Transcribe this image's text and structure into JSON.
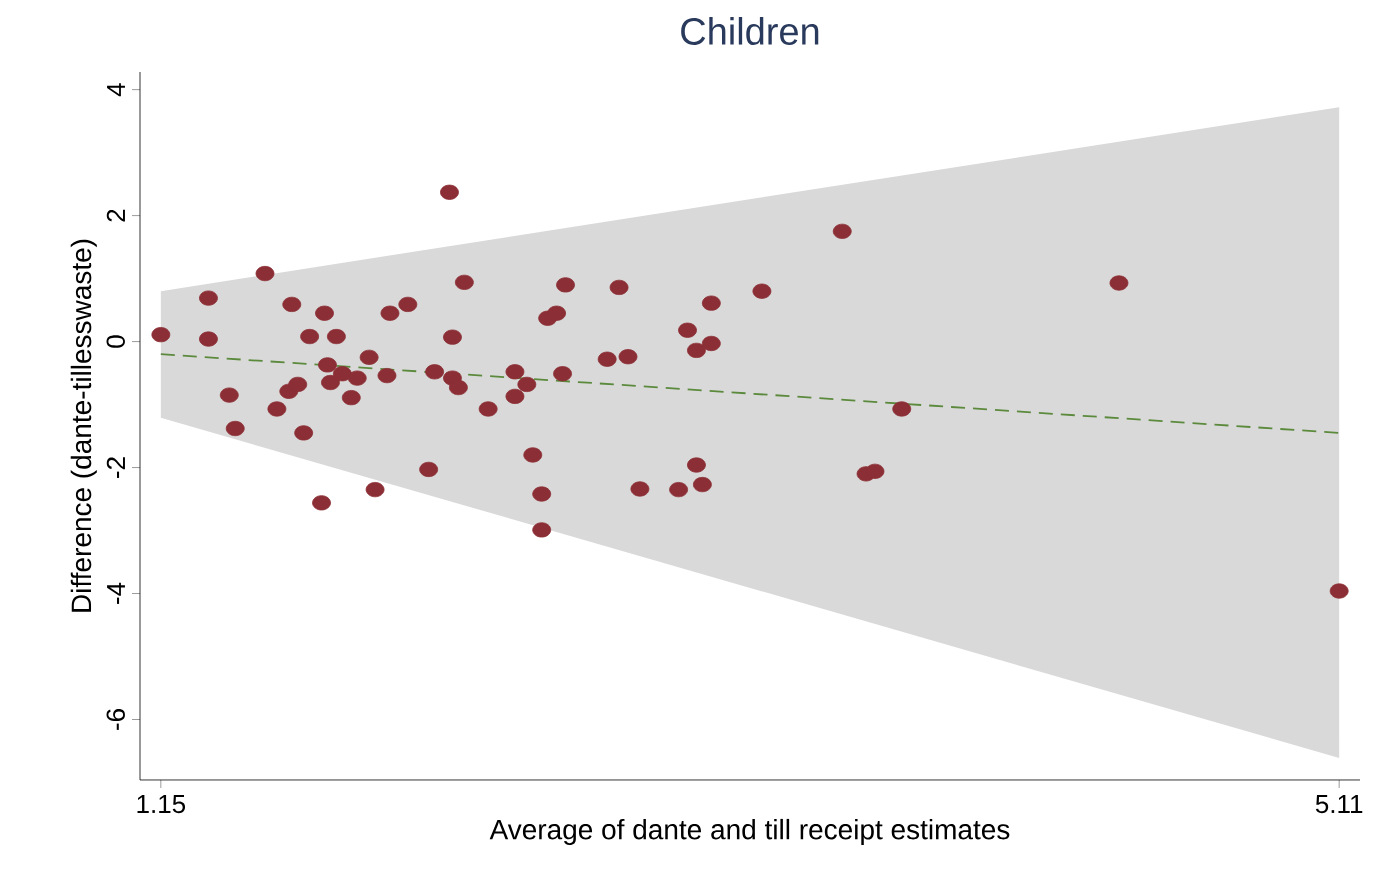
{
  "chart_data": {
    "type": "scatter",
    "title": "Children",
    "xlabel": "Average of dante and till receipt estimates",
    "ylabel": "Difference (dante-tillesswaste)",
    "xlim": [
      1.08,
      5.18
    ],
    "ylim": [
      -6.96,
      4.28
    ],
    "xticks": [
      1.15,
      5.11
    ],
    "yticks": [
      -6,
      -4,
      -2,
      0,
      2,
      4
    ],
    "grid": false,
    "series": [
      {
        "type": "line",
        "color": "#5b8a3c",
        "line_style": "dashed",
        "marker": "none",
        "x": [
          1.15,
          5.11
        ],
        "values": [
          -0.2,
          -1.45
        ],
        "lower": [
          -1.21,
          -6.61
        ],
        "upper": [
          0.8,
          3.72
        ]
      },
      {
        "color": "#8b2e35",
        "marker": "circle",
        "x": [
          1.15,
          1.31,
          1.31,
          1.38,
          1.4,
          1.5,
          1.54,
          1.59,
          1.58,
          1.61,
          1.63,
          1.65,
          1.69,
          1.7,
          1.71,
          1.74,
          1.72,
          1.76,
          1.79,
          1.81,
          1.85,
          1.87,
          1.91,
          1.92,
          1.98,
          2.05,
          2.07,
          2.12,
          2.13,
          2.13,
          2.15,
          2.17,
          2.25,
          2.34,
          2.34,
          2.38,
          2.4,
          2.43,
          2.43,
          2.45,
          2.48,
          2.5,
          2.51,
          2.65,
          2.69,
          2.72,
          2.76,
          2.89,
          2.92,
          2.95,
          2.95,
          2.97,
          3.0,
          3.0,
          3.17,
          3.44,
          3.52,
          3.55,
          3.64,
          4.37,
          5.11
        ],
        "values": [
          0.11,
          0.69,
          0.04,
          -0.85,
          -1.38,
          1.08,
          -1.07,
          0.59,
          -0.79,
          -0.68,
          -1.45,
          0.08,
          -2.56,
          0.45,
          -0.37,
          0.08,
          -0.65,
          -0.51,
          -0.89,
          -0.58,
          -0.25,
          -2.35,
          -0.54,
          0.45,
          0.59,
          -2.03,
          -0.48,
          2.37,
          0.07,
          -0.58,
          -0.73,
          0.94,
          -1.07,
          -0.48,
          -0.87,
          -0.68,
          -1.8,
          -2.42,
          -2.99,
          0.37,
          0.45,
          -0.51,
          0.9,
          -0.28,
          0.86,
          -0.24,
          -2.34,
          -2.35,
          0.18,
          -1.96,
          -0.14,
          -2.27,
          -0.03,
          0.61,
          0.8,
          1.75,
          -2.1,
          -2.06,
          -1.07,
          0.93,
          -3.96
        ]
      }
    ]
  }
}
